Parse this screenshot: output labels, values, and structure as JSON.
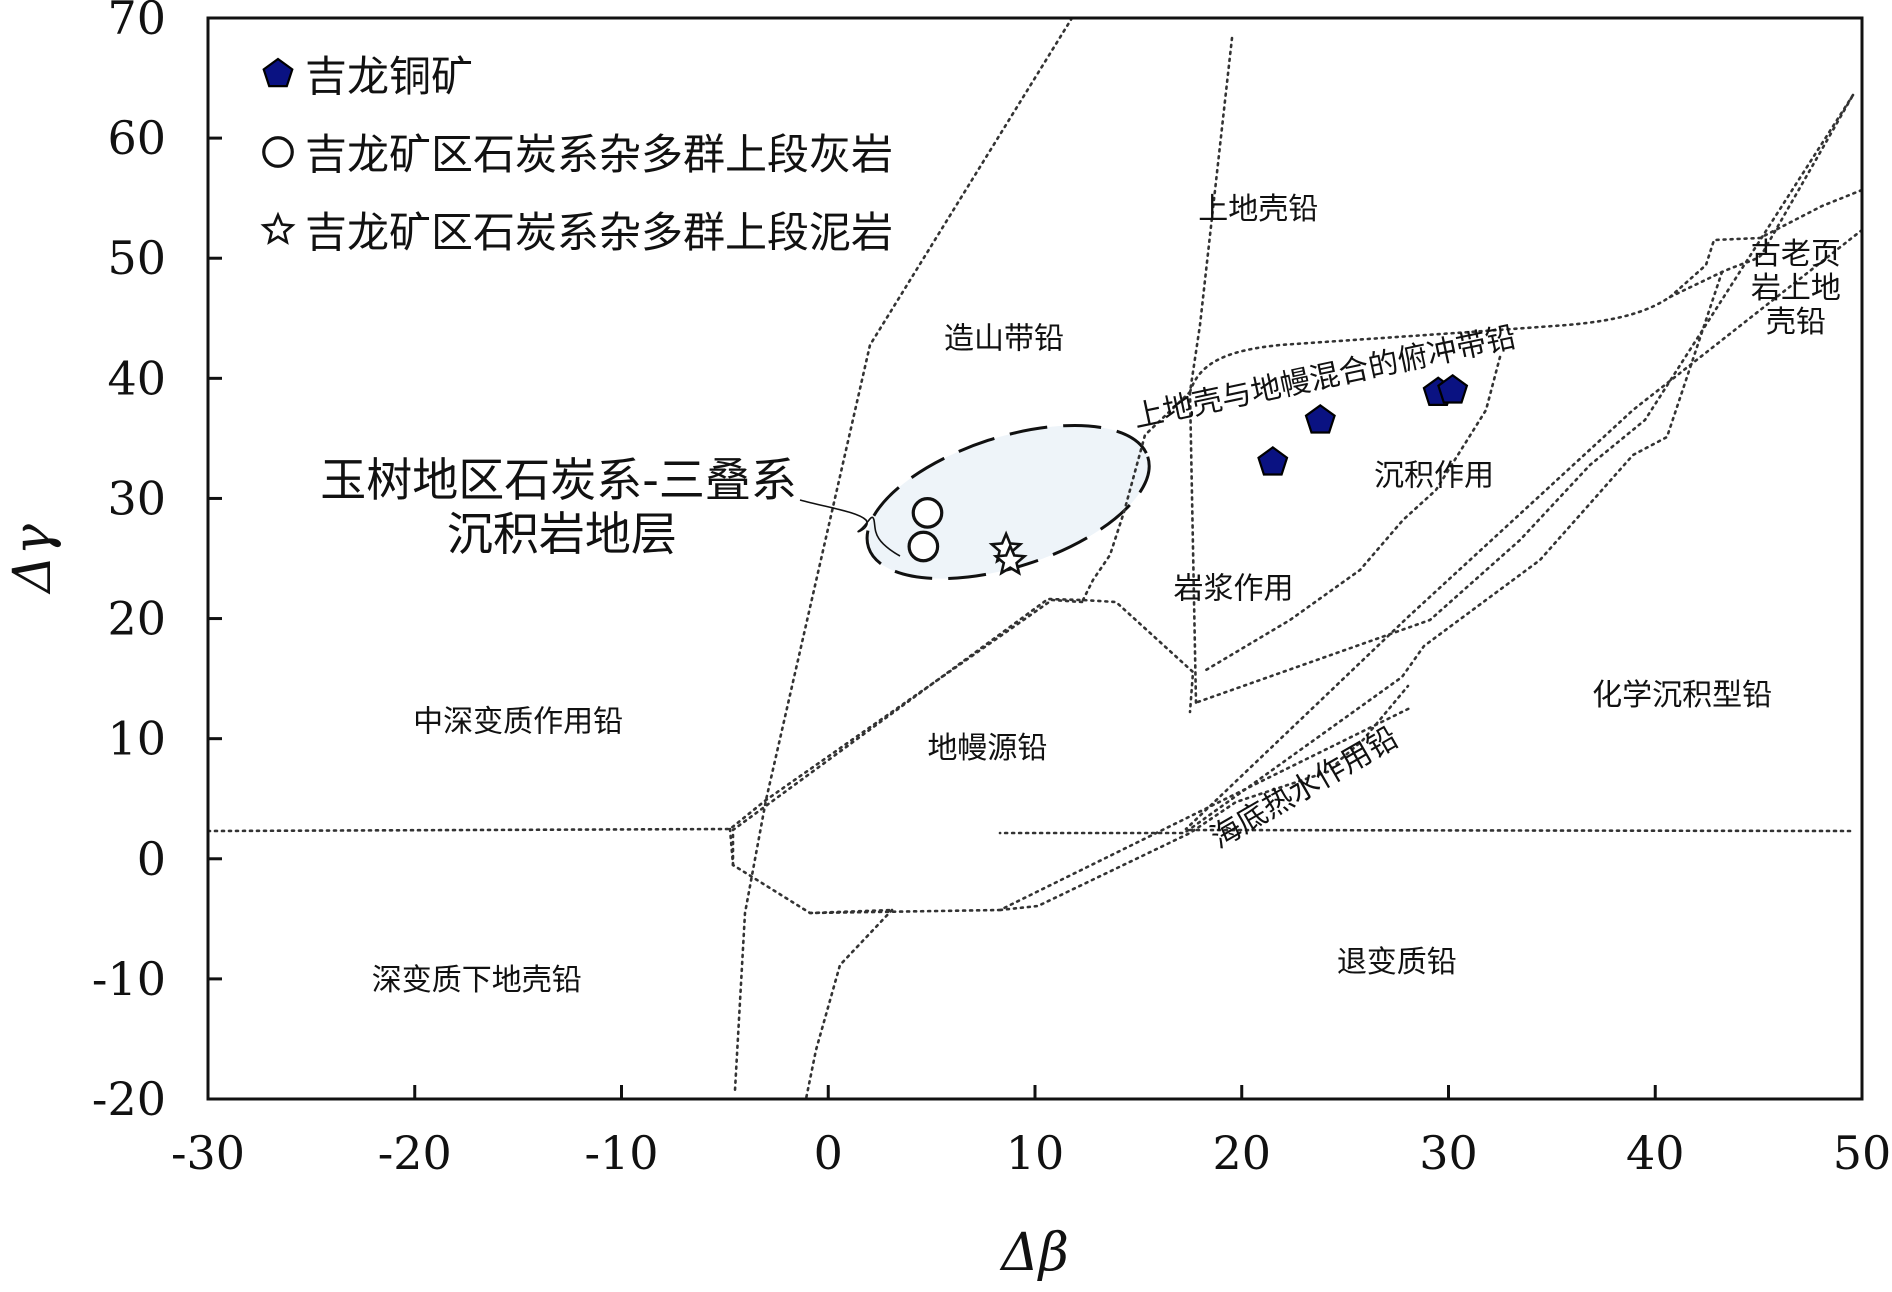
{
  "chart_data": {
    "type": "scatter",
    "xlabel": "Δβ",
    "ylabel": "Δγ",
    "xlim": [
      -30,
      50
    ],
    "ylim": [
      -20,
      70
    ],
    "xticks": [
      "-30",
      "-20",
      "-10",
      "0",
      "10",
      "20",
      "30",
      "40",
      "50"
    ],
    "yticks": [
      "-20",
      "-10",
      "0",
      "10",
      "20",
      "30",
      "40",
      "50",
      "60",
      "70"
    ],
    "legend_position": "top-left",
    "series": [
      {
        "name": "吉龙铜矿",
        "marker": "pentagon",
        "color": "#0a1282",
        "points": [
          [
            21.5,
            33
          ],
          [
            23.8,
            36.5
          ],
          [
            29.5,
            38.8
          ],
          [
            30.2,
            39
          ]
        ]
      },
      {
        "name": "吉龙矿区石炭系杂多群上段灰岩",
        "marker": "circle",
        "color": "#ffffff",
        "points": [
          [
            4.8,
            28.8
          ],
          [
            4.6,
            26
          ]
        ]
      },
      {
        "name": "吉龙矿区石炭系杂多群上段泥岩",
        "marker": "star",
        "color": "#ffffff",
        "points": [
          [
            8.6,
            25.8
          ],
          [
            8.8,
            24.8
          ]
        ]
      }
    ],
    "region_labels": [
      {
        "text": "上地壳铅",
        "x": 20.8,
        "y": 54.2
      },
      {
        "text": "造山带铅",
        "x": 8.5,
        "y": 43.4
      },
      {
        "text": "沉积作用",
        "x": 29.3,
        "y": 32
      },
      {
        "text": "岩浆作用",
        "x": 19.6,
        "y": 22.6
      },
      {
        "text": "中深变质作用铅",
        "x": -15,
        "y": 11.5
      },
      {
        "text": "地幔源铅",
        "x": 7.7,
        "y": 9.3
      },
      {
        "text": "化学沉积型铅",
        "x": 41.3,
        "y": 13.7
      },
      {
        "text": "退变质铅",
        "x": 27.5,
        "y": -8.5
      },
      {
        "text": "深变质下地壳铅",
        "x": -17,
        "y": -10
      }
    ],
    "rotated_labels": [
      {
        "text": "上地壳与地幔混合的俯冲带铅",
        "x": 24,
        "y": 40.2,
        "angle": -12
      },
      {
        "text": "海底热水作用铅",
        "x": 23,
        "y": 6,
        "angle": -30
      }
    ],
    "stacked_label": {
      "lines": [
        "古老页",
        "岩上地",
        "壳铅"
      ],
      "x": 46.8,
      "y": 49.5
    },
    "annotation": {
      "lines": [
        "玉树地区石炭系-三叠系",
        "沉积岩地层"
      ],
      "x": -2,
      "y": 30.2
    },
    "highlight_ellipse": {
      "cx": 8.7,
      "cy": 29.7,
      "rx": 7.1,
      "ry": 5.4,
      "angle": -18,
      "fill": "#eef4f9"
    }
  }
}
